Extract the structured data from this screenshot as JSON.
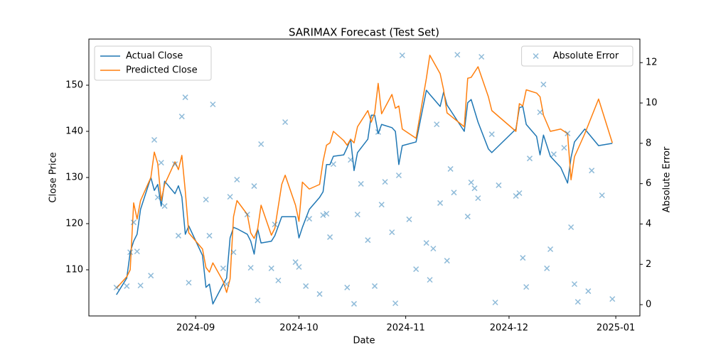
{
  "chart_data": {
    "type": "line",
    "title": "SARIMAX Forecast (Test Set)",
    "xlabel": "Date",
    "ylabel": "Close Price",
    "y2label": "Absolute Error",
    "x": [
      "2024-08-09",
      "2024-08-12",
      "2024-08-13",
      "2024-08-14",
      "2024-08-15",
      "2024-08-16",
      "2024-08-19",
      "2024-08-20",
      "2024-08-21",
      "2024-08-22",
      "2024-08-23",
      "2024-08-26",
      "2024-08-27",
      "2024-08-28",
      "2024-08-29",
      "2024-08-30",
      "2024-09-03",
      "2024-09-04",
      "2024-09-05",
      "2024-09-06",
      "2024-09-09",
      "2024-09-10",
      "2024-09-11",
      "2024-09-12",
      "2024-09-13",
      "2024-09-16",
      "2024-09-17",
      "2024-09-18",
      "2024-09-19",
      "2024-09-20",
      "2024-09-23",
      "2024-09-24",
      "2024-09-26",
      "2024-09-27",
      "2024-09-30",
      "2024-10-01",
      "2024-10-02",
      "2024-10-04",
      "2024-10-07",
      "2024-10-08",
      "2024-10-09",
      "2024-10-10",
      "2024-10-11",
      "2024-10-14",
      "2024-10-15",
      "2024-10-16",
      "2024-10-17",
      "2024-10-18",
      "2024-10-21",
      "2024-10-22",
      "2024-10-23",
      "2024-10-24",
      "2024-10-25",
      "2024-10-28",
      "2024-10-29",
      "2024-10-30",
      "2024-10-31",
      "2024-11-04",
      "2024-11-07",
      "2024-11-08",
      "2024-11-11",
      "2024-11-12",
      "2024-11-13",
      "2024-11-18",
      "2024-11-19",
      "2024-11-20",
      "2024-11-22",
      "2024-11-25",
      "2024-11-26",
      "2024-12-03",
      "2024-12-04",
      "2024-12-05",
      "2024-12-06",
      "2024-12-09",
      "2024-12-10",
      "2024-12-11",
      "2024-12-13",
      "2024-12-16",
      "2024-12-18",
      "2024-12-19",
      "2024-12-20",
      "2024-12-23",
      "2024-12-27",
      "2024-12-31"
    ],
    "series": [
      {
        "name": "Actual Close",
        "color": "#1f77b4",
        "legend": "upper left",
        "values": [
          104.6,
          108.2,
          113.8,
          116.2,
          117.7,
          123.1,
          130.0,
          127.2,
          128.5,
          123.8,
          129.2,
          126.5,
          128.2,
          125.8,
          117.7,
          119.5,
          113.1,
          106.2,
          106.9,
          102.6,
          106.9,
          108.2,
          116.9,
          119.2,
          118.9,
          117.7,
          116.2,
          113.4,
          118.9,
          115.8,
          116.2,
          117.4,
          121.5,
          121.5,
          121.5,
          116.9,
          119.2,
          123.1,
          125.7,
          126.9,
          132.8,
          132.8,
          134.6,
          134.9,
          136.5,
          138.3,
          131.5,
          135.4,
          138.3,
          143.5,
          143.5,
          139.5,
          141.5,
          140.8,
          140.0,
          132.8,
          136.9,
          137.7,
          148.9,
          148.0,
          145.4,
          148.5,
          145.7,
          140.0,
          146.2,
          146.9,
          142.0,
          136.2,
          135.4,
          140.5,
          145.1,
          145.4,
          141.5,
          138.9,
          134.9,
          139.2,
          134.6,
          132.2,
          128.8,
          134.3,
          137.7,
          140.5,
          136.9,
          137.4
        ]
      },
      {
        "name": "Predicted Close",
        "color": "#ff7f0e",
        "legend": "upper left",
        "values": [
          106.0,
          108.5,
          110.0,
          124.5,
          121.0,
          125.0,
          130.0,
          135.5,
          133.0,
          125.0,
          128.5,
          133.4,
          131.7,
          134.8,
          127.0,
          118.0,
          114.5,
          110.5,
          109.5,
          111.5,
          107.5,
          105.1,
          108.0,
          121.5,
          125.0,
          122.0,
          118.0,
          116.8,
          118.8,
          124.0,
          117.5,
          119.0,
          128.5,
          130.5,
          124.0,
          120.5,
          129.0,
          127.5,
          128.5,
          133.5,
          137.0,
          137.5,
          140.0,
          138.0,
          137.0,
          138.3,
          137.5,
          141.0,
          144.5,
          142.0,
          144.0,
          150.4,
          143.8,
          148.0,
          145.0,
          145.5,
          140.5,
          138.5,
          151.5,
          156.5,
          152.5,
          149.0,
          144.0,
          141.0,
          151.5,
          151.7,
          154.0,
          147.5,
          144.5,
          140.0,
          146.0,
          145.5,
          149.0,
          148.3,
          147.5,
          143.5,
          140.0,
          140.5,
          139.5,
          129.5,
          134.5,
          139.5,
          147.0,
          137.5
        ]
      },
      {
        "name": "Absolute Error",
        "color": "#1f77b4",
        "legend": "upper right",
        "axis": "y2",
        "type": "scatter",
        "x": [
          "2024-08-09",
          "2024-08-12",
          "2024-08-13",
          "2024-08-14",
          "2024-08-15",
          "2024-08-16",
          "2024-08-19",
          "2024-08-20",
          "2024-08-21",
          "2024-08-22",
          "2024-08-23",
          "2024-08-26",
          "2024-08-27",
          "2024-08-28",
          "2024-08-29",
          "2024-08-30",
          "2024-09-04",
          "2024-09-05",
          "2024-09-06",
          "2024-09-09",
          "2024-09-10",
          "2024-09-11",
          "2024-09-12",
          "2024-09-13",
          "2024-09-16",
          "2024-09-17",
          "2024-09-18",
          "2024-09-19",
          "2024-09-20",
          "2024-09-23",
          "2024-09-24",
          "2024-09-25",
          "2024-09-27",
          "2024-09-30",
          "2024-10-01",
          "2024-10-03",
          "2024-10-04",
          "2024-10-07",
          "2024-10-08",
          "2024-10-09",
          "2024-10-10",
          "2024-10-11",
          "2024-10-15",
          "2024-10-16",
          "2024-10-17",
          "2024-10-18",
          "2024-10-19",
          "2024-10-21",
          "2024-10-23",
          "2024-10-24",
          "2024-10-25",
          "2024-10-26",
          "2024-10-28",
          "2024-10-29",
          "2024-10-30",
          "2024-10-31",
          "2024-11-02",
          "2024-11-04",
          "2024-11-07",
          "2024-11-08",
          "2024-11-09",
          "2024-11-10",
          "2024-11-11",
          "2024-11-13",
          "2024-11-14",
          "2024-11-15",
          "2024-11-16",
          "2024-11-19",
          "2024-11-20",
          "2024-11-21",
          "2024-11-22",
          "2024-11-23",
          "2024-11-26",
          "2024-11-27",
          "2024-11-28",
          "2024-12-03",
          "2024-12-04",
          "2024-12-05",
          "2024-12-06",
          "2024-12-07",
          "2024-12-10",
          "2024-12-11",
          "2024-12-12",
          "2024-12-13",
          "2024-12-14",
          "2024-12-17",
          "2024-12-18",
          "2024-12-19",
          "2024-12-20",
          "2024-12-21",
          "2024-12-24",
          "2024-12-25",
          "2024-12-28",
          "2024-12-31"
        ],
        "values": [
          0.85,
          0.92,
          2.6,
          4.08,
          2.64,
          0.95,
          1.44,
          8.17,
          5.32,
          7.04,
          4.89,
          6.97,
          3.42,
          9.33,
          10.28,
          1.09,
          5.21,
          3.42,
          9.93,
          1.8,
          1.02,
          5.35,
          2.6,
          6.2,
          4.47,
          1.83,
          5.88,
          0.21,
          7.96,
          1.8,
          3.98,
          1.2,
          9.05,
          2.11,
          1.87,
          0.92,
          4.26,
          0.53,
          4.44,
          4.51,
          3.35,
          6.97,
          0.85,
          7.18,
          0.04,
          4.47,
          5.99,
          3.2,
          0.92,
          8.56,
          4.96,
          6.09,
          3.59,
          0.07,
          6.41,
          12.36,
          4.23,
          1.76,
          3.06,
          1.23,
          2.78,
          8.94,
          5.04,
          2.18,
          6.73,
          5.56,
          12.39,
          4.37,
          6.06,
          5.77,
          5.28,
          12.29,
          8.45,
          0.11,
          5.92,
          5.39,
          5.53,
          2.32,
          0.88,
          7.25,
          9.54,
          10.92,
          1.8,
          2.75,
          7.46,
          7.78,
          8.49,
          3.84,
          1.02,
          0.14,
          0.67,
          6.65,
          5.42,
          0.28
        ]
      }
    ],
    "xlim": [
      "2024-08-01",
      "2025-01-08"
    ],
    "xticks": [
      {
        "value": "2024-09-01",
        "label": "2024-09"
      },
      {
        "value": "2024-10-01",
        "label": "2024-10"
      },
      {
        "value": "2024-11-01",
        "label": "2024-11"
      },
      {
        "value": "2024-12-01",
        "label": "2024-12"
      },
      {
        "value": "2025-01-01",
        "label": "2025-01"
      }
    ],
    "ylim": [
      100,
      160
    ],
    "yticks": [
      110,
      120,
      130,
      140,
      150
    ],
    "y2lim": [
      -0.56,
      13.17
    ],
    "y2ticks": [
      0,
      2,
      4,
      6,
      8,
      10,
      12
    ],
    "grid": false
  }
}
